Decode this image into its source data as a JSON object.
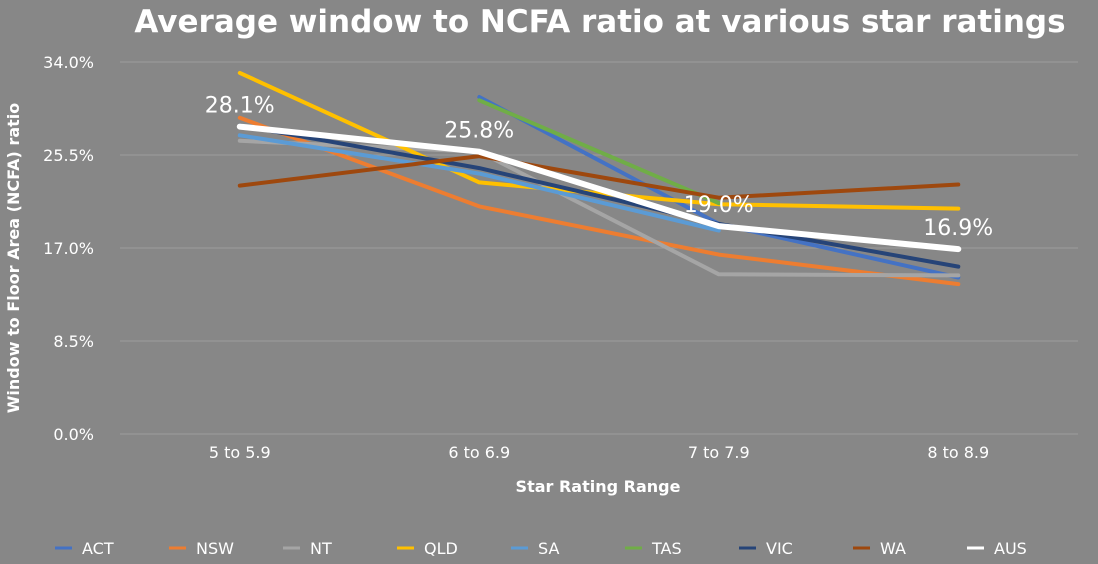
{
  "chart_data": {
    "type": "line",
    "title": "Average window to NCFA ratio at various star ratings",
    "xlabel": "Star Rating Range",
    "ylabel": "Window to Floor Area (NCFA) ratio",
    "categories": [
      "5 to 5.9",
      "6 to 6.9",
      "7 to 7.9",
      "8 to 8.9"
    ],
    "ylim": [
      0,
      34
    ],
    "yticks": [
      0,
      8.5,
      17,
      25.5,
      34
    ],
    "ytick_labels": [
      "0.0%",
      "8.5%",
      "17.0%",
      "25.5%",
      "34.0%"
    ],
    "grid": true,
    "legend_position": "bottom",
    "series": [
      {
        "name": "ACT",
        "color": "#4472C4",
        "values": [
          null,
          30.8,
          19.2,
          14.3
        ]
      },
      {
        "name": "NSW",
        "color": "#ED7D31",
        "values": [
          28.9,
          20.8,
          16.4,
          13.7
        ]
      },
      {
        "name": "NT",
        "color": "#A5A5A5",
        "values": [
          26.8,
          25.8,
          14.6,
          14.5
        ]
      },
      {
        "name": "QLD",
        "color": "#FFC000",
        "values": [
          33.0,
          23.0,
          21.0,
          20.6
        ]
      },
      {
        "name": "SA",
        "color": "#5B9BD5",
        "values": [
          27.3,
          23.8,
          18.6,
          null
        ]
      },
      {
        "name": "TAS",
        "color": "#70AD47",
        "values": [
          null,
          30.5,
          21.1,
          null
        ]
      },
      {
        "name": "VIC",
        "color": "#264478",
        "values": [
          28.2,
          24.3,
          19.2,
          15.3
        ]
      },
      {
        "name": "WA",
        "color": "#9E480E",
        "values": [
          22.7,
          25.4,
          21.6,
          22.8
        ]
      },
      {
        "name": "AUS",
        "color": "#FFFFFF",
        "values": [
          28.1,
          25.8,
          19.0,
          16.9
        ]
      }
    ],
    "data_labels": [
      {
        "series": "AUS",
        "index": 0,
        "text": "28.1%"
      },
      {
        "series": "AUS",
        "index": 1,
        "text": "25.8%"
      },
      {
        "series": "AUS",
        "index": 2,
        "text": "19.0%"
      },
      {
        "series": "AUS",
        "index": 3,
        "text": "16.9%"
      }
    ]
  }
}
